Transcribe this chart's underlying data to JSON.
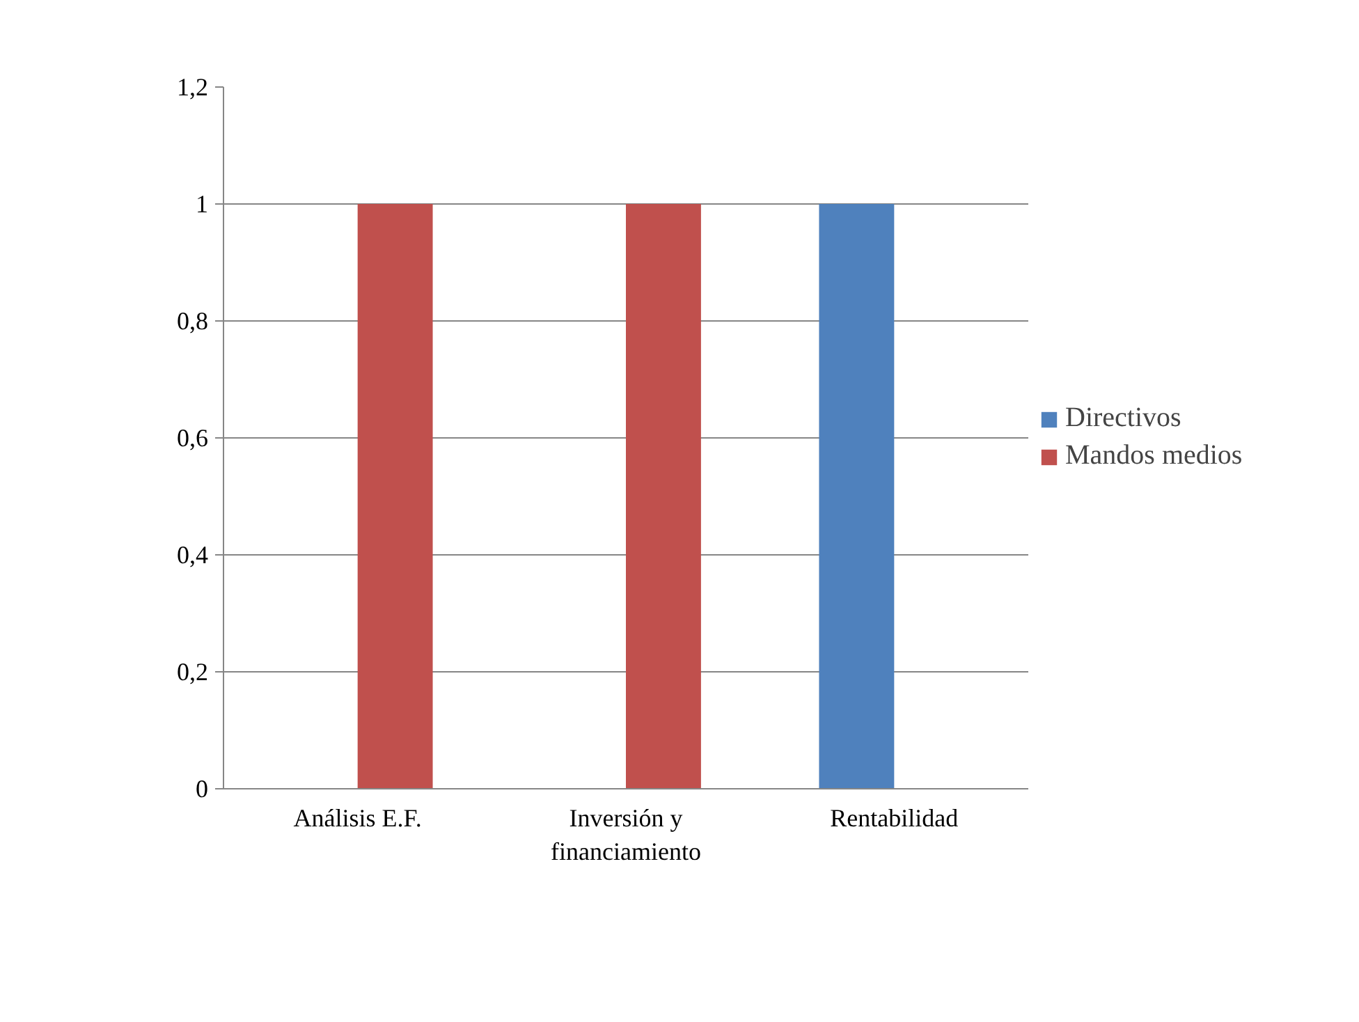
{
  "chart_data": {
    "type": "bar",
    "categories": [
      "Análisis E.F.",
      "Inversión y financiamiento",
      "Rentabilidad"
    ],
    "series": [
      {
        "name": "Directivos",
        "color": "#4f81bd",
        "values": [
          0,
          0,
          1
        ]
      },
      {
        "name": "Mandos medios",
        "color": "#c0504d",
        "values": [
          1,
          1,
          0
        ]
      }
    ],
    "ylim": [
      0,
      1.2
    ],
    "yticks": [
      0,
      {
        "value": 0.2,
        "label": "0,2"
      },
      {
        "value": 0.4,
        "label": "0,4"
      },
      {
        "value": 0.6,
        "label": "0,6"
      },
      {
        "value": 0.8,
        "label": "0,8"
      },
      1,
      {
        "value": 1.2,
        "label": "1,2"
      }
    ],
    "grid": "y",
    "legend": "right"
  }
}
